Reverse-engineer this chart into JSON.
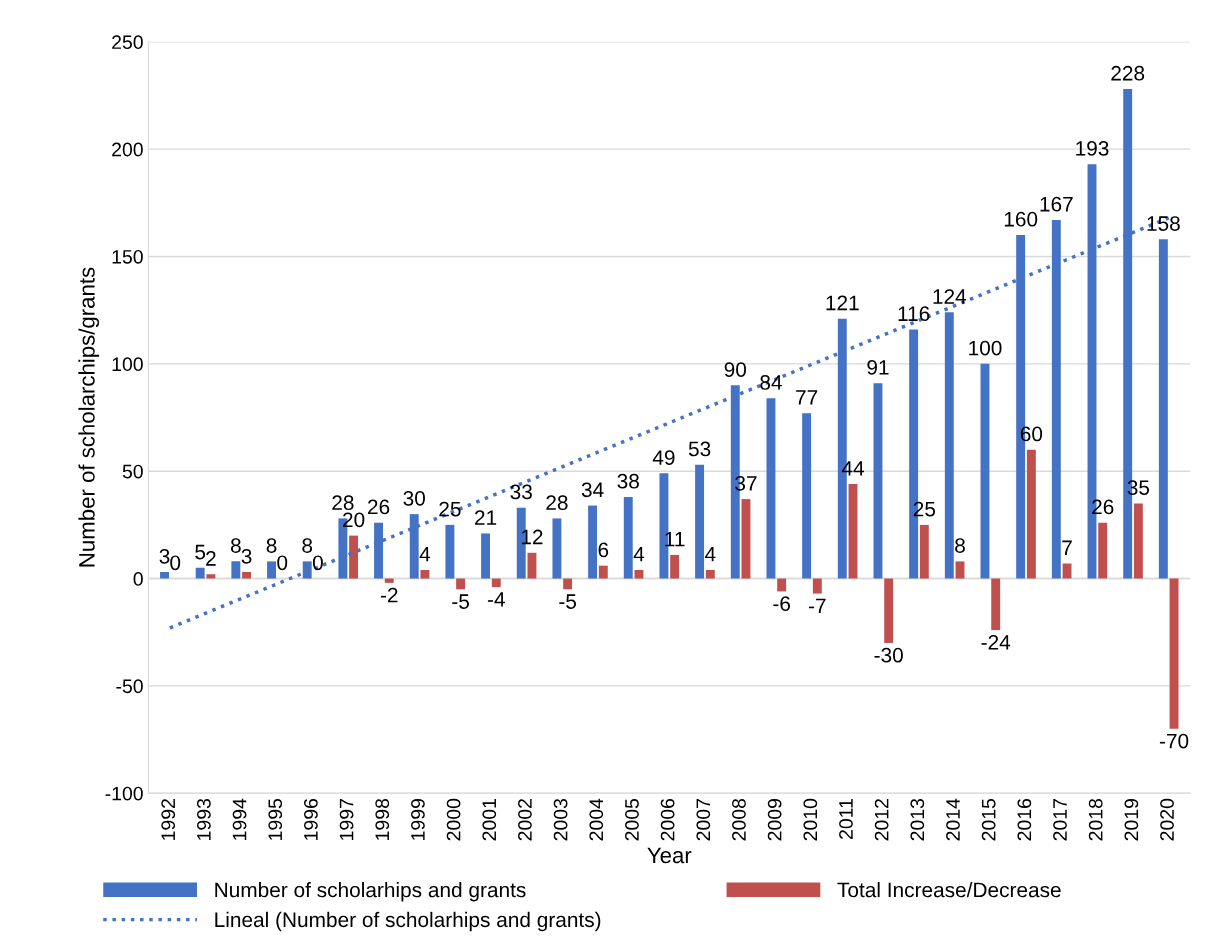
{
  "chart_data": {
    "type": "bar",
    "xlabel": "Year",
    "ylabel": "Number of scholarchips/grants",
    "categories": [
      "1992",
      "1993",
      "1994",
      "1995",
      "1996",
      "1997",
      "1998",
      "1999",
      "2000",
      "2001",
      "2002",
      "2003",
      "2004",
      "2005",
      "2006",
      "2007",
      "2008",
      "2009",
      "2010",
      "2011",
      "2012",
      "2013",
      "2014",
      "2015",
      "2016",
      "2017",
      "2018",
      "2019",
      "2020"
    ],
    "series": [
      {
        "name": "Number of scholarhips and grants",
        "color": "#4472c4",
        "values": [
          3,
          5,
          8,
          8,
          8,
          28,
          26,
          30,
          25,
          21,
          33,
          28,
          34,
          38,
          49,
          53,
          90,
          84,
          77,
          121,
          91,
          116,
          124,
          100,
          160,
          167,
          193,
          228,
          158
        ]
      },
      {
        "name": "Total Increase/Decrease",
        "color": "#c0504d",
        "values": [
          0,
          2,
          3,
          0,
          0,
          20,
          -2,
          4,
          -5,
          -4,
          12,
          -5,
          6,
          4,
          11,
          4,
          37,
          -6,
          -7,
          44,
          -30,
          25,
          8,
          -24,
          60,
          7,
          26,
          35,
          -70
        ]
      },
      {
        "name": "Lineal (Number of scholarhips and grants)",
        "type": "line",
        "color": "#4472c4",
        "line_style": "dotted",
        "data_labels": false,
        "values": [
          -23,
          null,
          null,
          null,
          null,
          null,
          null,
          null,
          null,
          null,
          null,
          null,
          null,
          null,
          null,
          null,
          null,
          null,
          null,
          null,
          null,
          null,
          null,
          null,
          null,
          null,
          null,
          null,
          168
        ]
      }
    ],
    "ylim": [
      -100,
      250
    ],
    "yticks": [
      -100,
      -50,
      0,
      50,
      100,
      150,
      200,
      250
    ],
    "grid": "y",
    "legend": "bottom",
    "data_labels": true
  }
}
